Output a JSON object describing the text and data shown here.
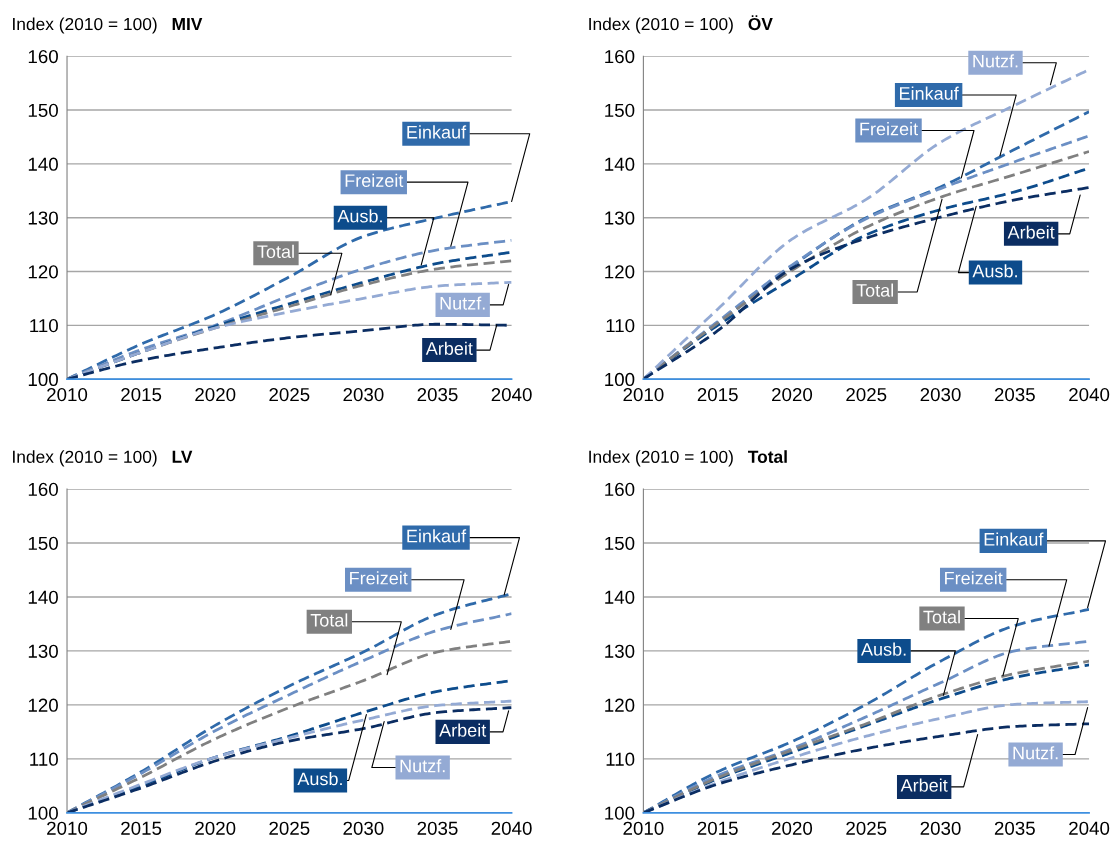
{
  "chart_data": [
    {
      "type": "line",
      "title": "MIV",
      "ylabel": "Index (2010 = 100)",
      "x": [
        2010,
        2015,
        2020,
        2025,
        2030,
        2035,
        2040
      ],
      "xlim": [
        2010,
        2040
      ],
      "xticks": [
        2010,
        2015,
        2020,
        2025,
        2030,
        2035,
        2040
      ],
      "ylim": [
        100,
        160
      ],
      "yticks": [
        100,
        110,
        120,
        130,
        140,
        150,
        160
      ],
      "grid": "y",
      "line_style": "dashed",
      "legend": false,
      "series": [
        {
          "color": "#2f6aaa",
          "values": [
            100,
            106.5,
            112,
            119,
            126.5,
            130,
            133
          ]
        },
        {
          "color": "#6b8fc4",
          "values": [
            100,
            105.5,
            110,
            115.5,
            120.5,
            124,
            125.8
          ]
        },
        {
          "color": "#0d4c8c",
          "values": [
            100,
            105,
            109.8,
            114,
            118,
            121.5,
            123.6
          ]
        },
        {
          "color": "#808080",
          "values": [
            100,
            105,
            109.5,
            113.5,
            117.5,
            120.5,
            122
          ]
        },
        {
          "color": "#94aad4",
          "values": [
            100,
            105,
            109.5,
            112.5,
            115,
            117.3,
            118
          ]
        },
        {
          "color": "#0b2d62",
          "values": [
            100,
            103.5,
            105.8,
            107.7,
            109,
            110.2,
            110
          ]
        }
      ],
      "annotations": [
        {
          "text": "Einkauf",
          "x": 2040,
          "y": 133
        },
        {
          "text": "Freizeit",
          "x": 2035.9,
          "y": 124.7
        },
        {
          "text": "Ausb.",
          "x": 2033.9,
          "y": 121.2
        },
        {
          "text": "Total",
          "x": 2027.8,
          "y": 115.7
        },
        {
          "text": "Nutzf.",
          "x": 2039.8,
          "y": 117.6
        },
        {
          "text": "Arbeit",
          "x": 2039,
          "y": 110.1
        }
      ]
    },
    {
      "type": "line",
      "title": "ÖV",
      "ylabel": "Index (2010 = 100)",
      "x": [
        2010,
        2015,
        2020,
        2025,
        2030,
        2035,
        2040
      ],
      "xlim": [
        2010,
        2040
      ],
      "xticks": [
        2010,
        2015,
        2020,
        2025,
        2030,
        2035,
        2040
      ],
      "ylim": [
        100,
        160
      ],
      "yticks": [
        100,
        110,
        120,
        130,
        140,
        150,
        160
      ],
      "grid": "y",
      "line_style": "dashed",
      "legend": false,
      "series": [
        {
          "color": "#2f6aaa",
          "values": [
            100,
            110.4,
            121,
            130,
            135.7,
            142.7,
            149.7
          ]
        },
        {
          "color": "#6b8fc4",
          "values": [
            100,
            110.7,
            121.2,
            129.8,
            135.4,
            140.4,
            145.2
          ]
        },
        {
          "color": "#0d4c8c",
          "values": [
            100,
            110,
            118.6,
            126.8,
            131.5,
            134.8,
            139.2
          ]
        },
        {
          "color": "#808080",
          "values": [
            100,
            110.4,
            120.2,
            128.2,
            133.8,
            138,
            142.3
          ]
        },
        {
          "color": "#94aad4",
          "values": [
            100,
            113,
            126,
            133.4,
            144,
            150.9,
            157.5
          ]
        },
        {
          "color": "#0b2d62",
          "values": [
            100,
            109,
            120.6,
            126.2,
            130.1,
            133.3,
            135.6
          ]
        }
      ],
      "annotations": [
        {
          "text": "Einkauf",
          "x": 2034,
          "y": 141.5
        },
        {
          "text": "Freizeit",
          "x": 2031.4,
          "y": 137.4
        },
        {
          "text": "Ausb.",
          "x": 2032.4,
          "y": 132.1
        },
        {
          "text": "Total",
          "x": 2030.1,
          "y": 133.4
        },
        {
          "text": "Nutzf.",
          "x": 2037.4,
          "y": 154.7
        },
        {
          "text": "Arbeit",
          "x": 2039.4,
          "y": 134.2
        }
      ]
    },
    {
      "type": "line",
      "title": "LV",
      "ylabel": "Index (2010 = 100)",
      "x": [
        2010,
        2015,
        2020,
        2025,
        2030,
        2035,
        2040
      ],
      "xlim": [
        2010,
        2040
      ],
      "xticks": [
        2010,
        2015,
        2020,
        2025,
        2030,
        2035,
        2040
      ],
      "ylim": [
        100,
        160
      ],
      "yticks": [
        100,
        110,
        120,
        130,
        140,
        150,
        160
      ],
      "grid": "y",
      "line_style": "dashed",
      "legend": false,
      "series": [
        {
          "color": "#2f6aaa",
          "values": [
            100,
            107.6,
            116.2,
            123.5,
            129.8,
            136.8,
            140.6
          ]
        },
        {
          "color": "#6b8fc4",
          "values": [
            100,
            107.3,
            115.2,
            121.9,
            128.2,
            133.8,
            136.9
          ]
        },
        {
          "color": "#0d4c8c",
          "values": [
            100,
            105,
            110.3,
            114.2,
            118.6,
            122.5,
            124.5
          ]
        },
        {
          "color": "#808080",
          "values": [
            100,
            106.6,
            113.7,
            119.5,
            124.5,
            129.8,
            131.8
          ]
        },
        {
          "color": "#94aad4",
          "values": [
            100,
            105.3,
            110.3,
            113.9,
            117.2,
            119.9,
            120.7
          ]
        },
        {
          "color": "#0b2d62",
          "values": [
            100,
            104.6,
            109.6,
            113.3,
            115.6,
            118.6,
            119.5
          ]
        }
      ],
      "annotations": [
        {
          "text": "Einkauf",
          "x": 2039.5,
          "y": 140.4
        },
        {
          "text": "Freizeit",
          "x": 2035.9,
          "y": 134
        },
        {
          "text": "Ausb.",
          "x": 2030.2,
          "y": 118.2
        },
        {
          "text": "Total",
          "x": 2031.6,
          "y": 125.6
        },
        {
          "text": "Nutzf.",
          "x": 2031.4,
          "y": 116.9
        },
        {
          "text": "Arbeit",
          "x": 2039.8,
          "y": 118.9
        }
      ]
    },
    {
      "type": "line",
      "title": "Total",
      "ylabel": "Index (2010 = 100)",
      "x": [
        2010,
        2015,
        2020,
        2025,
        2030,
        2035,
        2040
      ],
      "xlim": [
        2010,
        2040
      ],
      "xticks": [
        2010,
        2015,
        2020,
        2025,
        2030,
        2035,
        2040
      ],
      "ylim": [
        100,
        160
      ],
      "yticks": [
        100,
        110,
        120,
        130,
        140,
        150,
        160
      ],
      "grid": "y",
      "line_style": "dashed",
      "legend": false,
      "series": [
        {
          "color": "#2f6aaa",
          "values": [
            100,
            107.6,
            113.2,
            120.1,
            128.1,
            134.7,
            137.7
          ]
        },
        {
          "color": "#6b8fc4",
          "values": [
            100,
            106.9,
            111.9,
            117.8,
            124.1,
            130,
            131.8
          ]
        },
        {
          "color": "#0d4c8c",
          "values": [
            100,
            106.3,
            111.2,
            116.2,
            121.1,
            125.1,
            127.4
          ]
        },
        {
          "color": "#808080",
          "values": [
            100,
            106.5,
            111.6,
            116.5,
            121.8,
            125.8,
            128.1
          ]
        },
        {
          "color": "#94aad4",
          "values": [
            100,
            105.6,
            110.2,
            114.2,
            117.5,
            120.1,
            120.6
          ]
        },
        {
          "color": "#0b2d62",
          "values": [
            100,
            105.3,
            108.9,
            111.9,
            114.2,
            116,
            116.5
          ]
        }
      ],
      "annotations": [
        {
          "text": "Einkauf",
          "x": 2039.9,
          "y": 138
        },
        {
          "text": "Freizeit",
          "x": 2037.3,
          "y": 130.9
        },
        {
          "text": "Ausb.",
          "x": 2030.2,
          "y": 121.8
        },
        {
          "text": "Total",
          "x": 2034.2,
          "y": 125.4
        },
        {
          "text": "Nutzf.",
          "x": 2039.9,
          "y": 119.5
        },
        {
          "text": "Arbeit",
          "x": 2032.5,
          "y": 114.5
        }
      ]
    }
  ]
}
